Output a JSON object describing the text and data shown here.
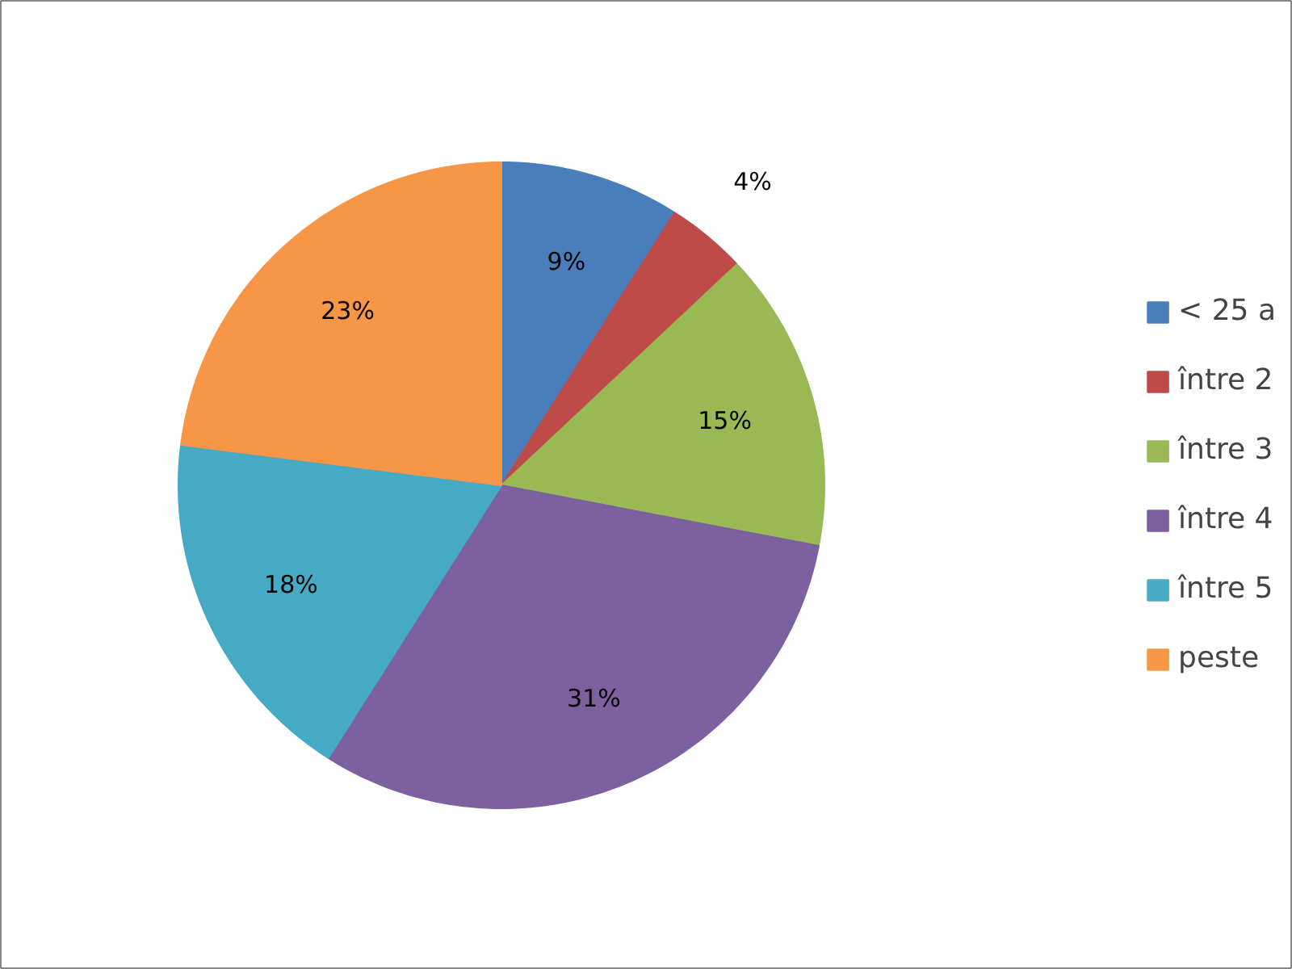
{
  "chart_data": {
    "type": "pie",
    "categories": [
      "< 25 a",
      "între 2",
      "între 3",
      "între 4",
      "între 5",
      "peste"
    ],
    "values": [
      9,
      4,
      15,
      31,
      18,
      23
    ],
    "colors": [
      "#4a7ebb",
      "#be4b48",
      "#98b954",
      "#7d60a0",
      "#46aac5",
      "#f79646"
    ],
    "value_labels": [
      "9%",
      "4%",
      "15%",
      "31%",
      "18%",
      "23%"
    ],
    "legend": "right"
  }
}
